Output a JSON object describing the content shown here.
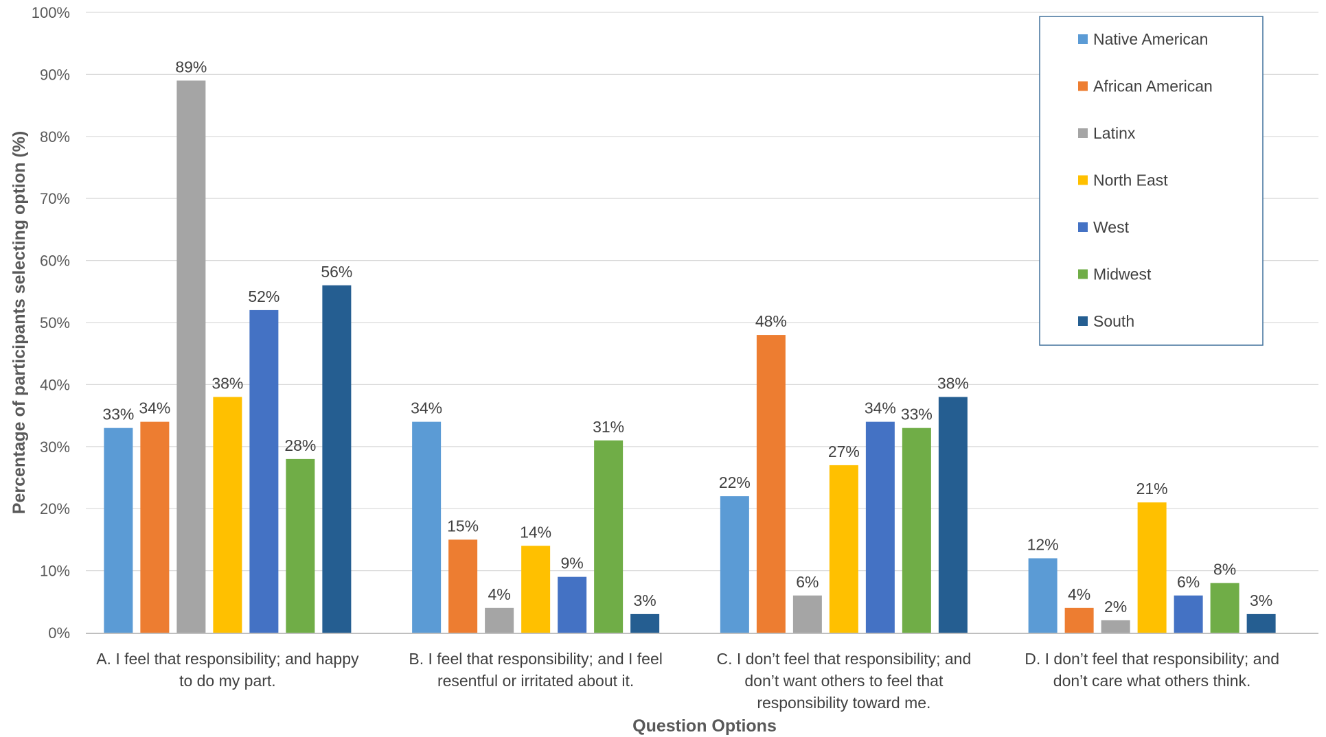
{
  "chart_data": {
    "type": "bar",
    "title": "",
    "xlabel": "Question  Options",
    "ylabel": "Percentage of participants  selecting option (%)",
    "ylim": [
      0,
      100
    ],
    "yticks": [
      "0%",
      "10%",
      "20%",
      "30%",
      "40%",
      "50%",
      "60%",
      "70%",
      "80%",
      "90%",
      "100%"
    ],
    "grid": true,
    "legend_position": "top-right",
    "categories": [
      [
        "A. I feel that responsibility; and happy",
        "to do my part."
      ],
      [
        "B. I feel that responsibility; and I feel",
        "resentful or irritated about it."
      ],
      [
        "C. I don’t feel that responsibility; and",
        "don’t want others to feel that",
        "responsibility toward me."
      ],
      [
        "D. I don’t feel that responsibility; and",
        "don’t care what others think."
      ]
    ],
    "series": [
      {
        "name": "Native American",
        "color": "#5B9BD5",
        "values": [
          33,
          34,
          22,
          12
        ],
        "labels": [
          "33%",
          "34%",
          "22%",
          "12%"
        ]
      },
      {
        "name": "African American",
        "color": "#ED7D31",
        "values": [
          34,
          15,
          48,
          4
        ],
        "labels": [
          "34%",
          "15%",
          "48%",
          "4%"
        ]
      },
      {
        "name": "Latinx",
        "color": "#A5A5A5",
        "values": [
          89,
          4,
          6,
          2
        ],
        "labels": [
          "89%",
          "4%",
          "6%",
          "2%"
        ]
      },
      {
        "name": "North East",
        "color": "#FFC000",
        "values": [
          38,
          14,
          27,
          21
        ],
        "labels": [
          "38%",
          "14%",
          "27%",
          "21%"
        ]
      },
      {
        "name": "West",
        "color": "#4472C4",
        "values": [
          52,
          9,
          34,
          6
        ],
        "labels": [
          "52%",
          "9%",
          "34%",
          "6%"
        ]
      },
      {
        "name": "Midwest",
        "color": "#70AD47",
        "values": [
          28,
          31,
          33,
          8
        ],
        "labels": [
          "28%",
          "31%",
          "33%",
          "8%"
        ]
      },
      {
        "name": "South",
        "color": "#255E91",
        "values": [
          56,
          3,
          38,
          3
        ],
        "labels": [
          "56%",
          "3%",
          "38%",
          "3%"
        ]
      }
    ]
  }
}
